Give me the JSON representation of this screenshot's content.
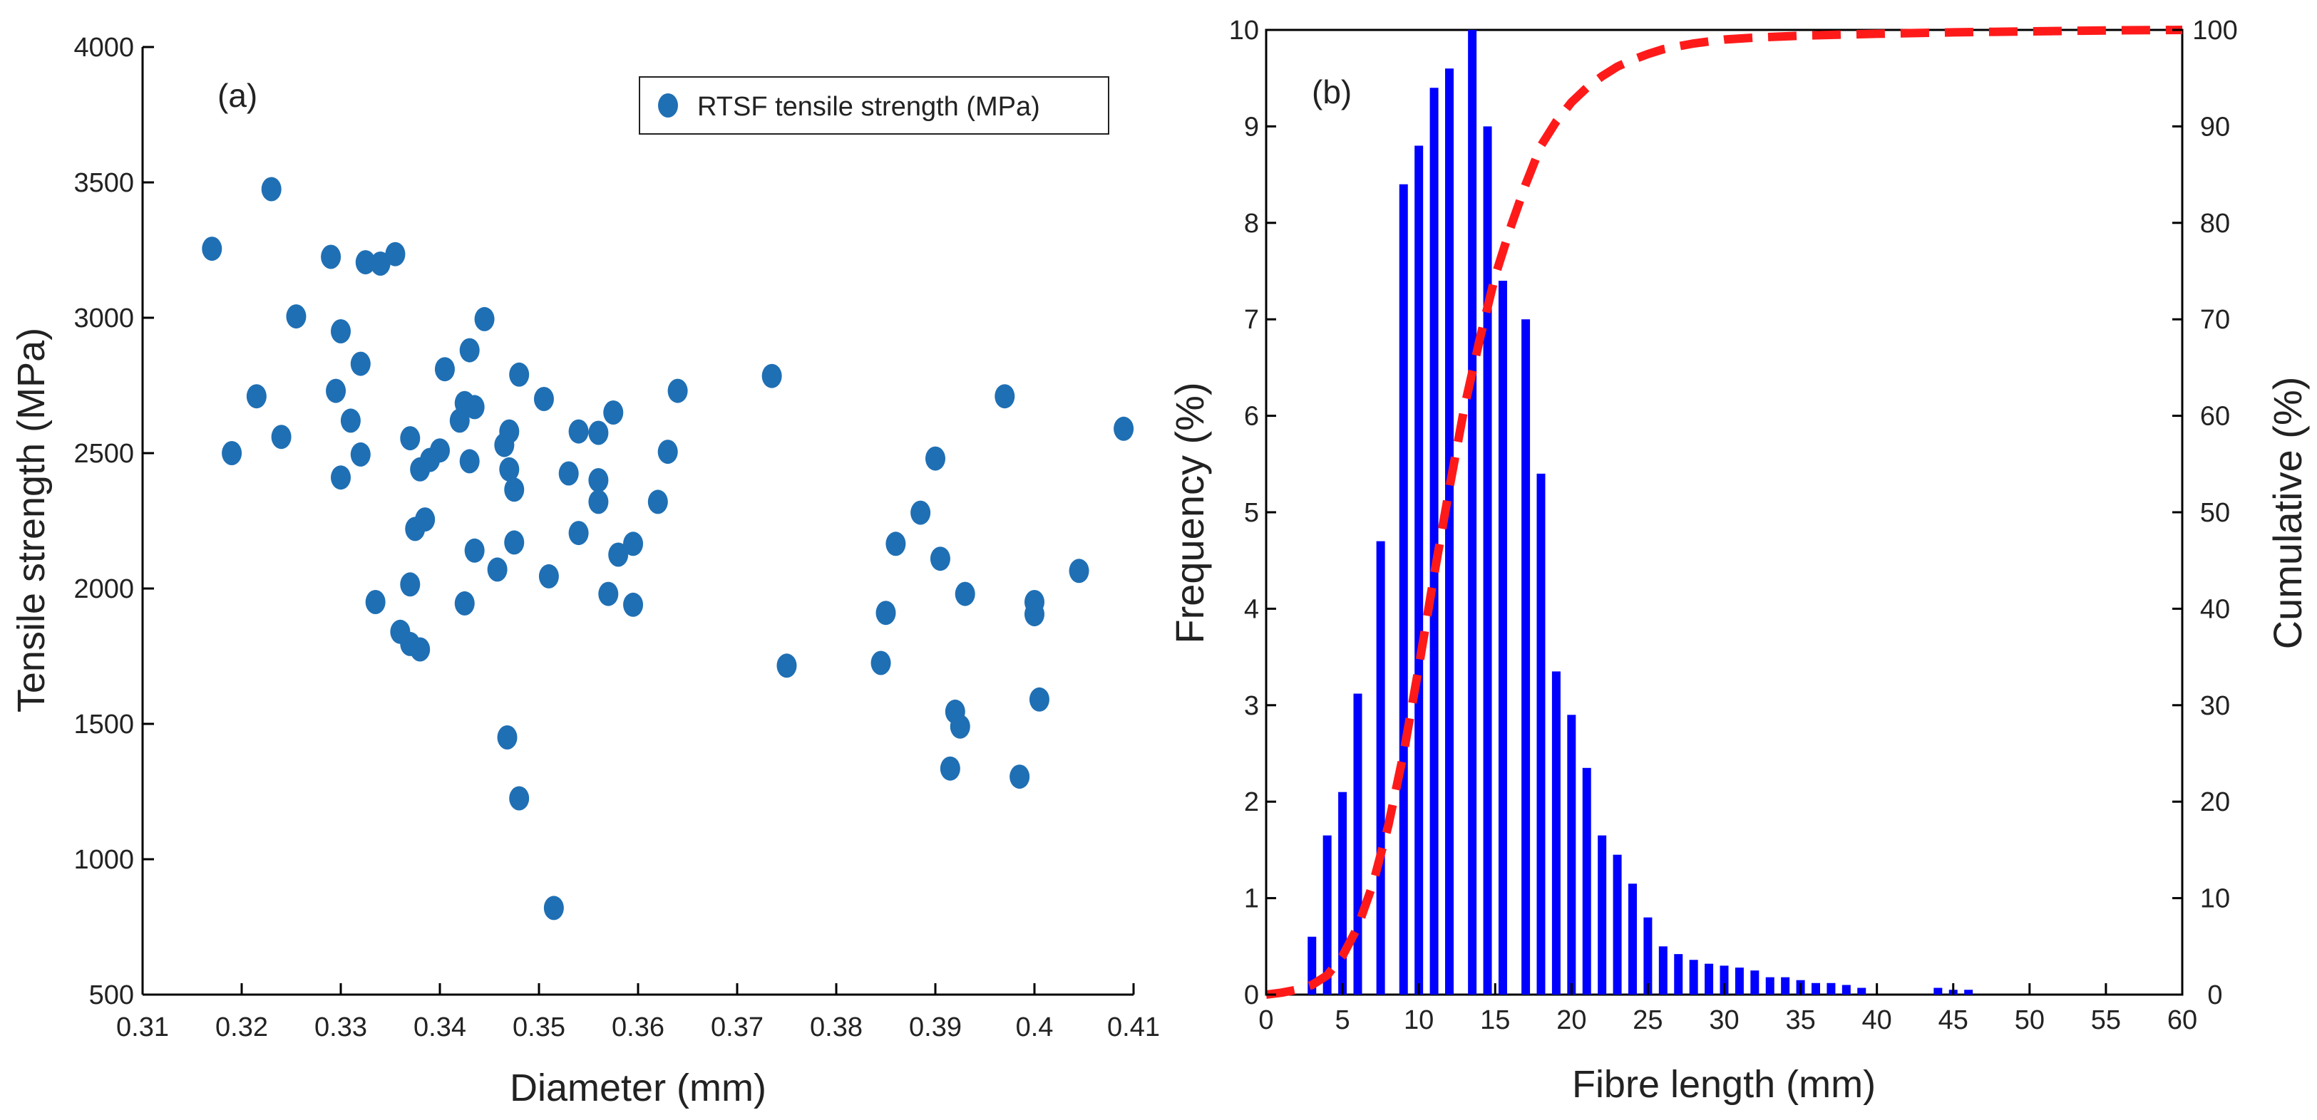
{
  "chart_data": [
    {
      "id": "a",
      "type": "scatter",
      "panel_label": "(a)",
      "xlabel": "Diameter (mm)",
      "ylabel": "Tensile strength (MPa)",
      "xlim": [
        0.31,
        0.41
      ],
      "ylim": [
        500,
        4000
      ],
      "xticks": [
        0.31,
        0.32,
        0.33,
        0.34,
        0.35,
        0.36,
        0.37,
        0.38,
        0.39,
        0.4,
        0.41
      ],
      "xtick_labels": [
        "0.31",
        "0.32",
        "0.33",
        "0.34",
        "0.35",
        "0.36",
        "0.37",
        "0.38",
        "0.39",
        "0.4",
        "0.41"
      ],
      "yticks": [
        500,
        1000,
        1500,
        2000,
        2500,
        3000,
        3500,
        4000
      ],
      "ytick_labels": [
        "500",
        "1000",
        "1500",
        "2000",
        "2500",
        "3000",
        "3500",
        "4000"
      ],
      "legend": {
        "label": "RTSF tensile strength (MPa)",
        "position": "top-right"
      },
      "series": [
        {
          "name": "RTSF tensile strength (MPa)",
          "color": "#1f6fb4",
          "points": [
            [
              0.317,
              3255
            ],
            [
              0.319,
              2500
            ],
            [
              0.3215,
              2710
            ],
            [
              0.323,
              3475
            ],
            [
              0.324,
              2560
            ],
            [
              0.3255,
              3005
            ],
            [
              0.329,
              3225
            ],
            [
              0.3295,
              2730
            ],
            [
              0.33,
              2950
            ],
            [
              0.33,
              2410
            ],
            [
              0.331,
              2620
            ],
            [
              0.332,
              2830
            ],
            [
              0.332,
              2495
            ],
            [
              0.3325,
              3205
            ],
            [
              0.3335,
              1950
            ],
            [
              0.334,
              3200
            ],
            [
              0.3355,
              3235
            ],
            [
              0.336,
              1840
            ],
            [
              0.337,
              2555
            ],
            [
              0.337,
              2015
            ],
            [
              0.337,
              1795
            ],
            [
              0.3375,
              2220
            ],
            [
              0.338,
              2440
            ],
            [
              0.338,
              1775
            ],
            [
              0.3385,
              2255
            ],
            [
              0.339,
              2475
            ],
            [
              0.34,
              2510
            ],
            [
              0.3405,
              2810
            ],
            [
              0.342,
              2620
            ],
            [
              0.3425,
              2685
            ],
            [
              0.3425,
              1945
            ],
            [
              0.343,
              2880
            ],
            [
              0.343,
              2470
            ],
            [
              0.3435,
              2670
            ],
            [
              0.3435,
              2140
            ],
            [
              0.3445,
              2995
            ],
            [
              0.3458,
              2070
            ],
            [
              0.3465,
              2530
            ],
            [
              0.3468,
              1450
            ],
            [
              0.347,
              2580
            ],
            [
              0.347,
              2440
            ],
            [
              0.3475,
              2365
            ],
            [
              0.3475,
              2170
            ],
            [
              0.348,
              2790
            ],
            [
              0.348,
              1225
            ],
            [
              0.3505,
              2700
            ],
            [
              0.351,
              2045
            ],
            [
              0.3515,
              820
            ],
            [
              0.353,
              2425
            ],
            [
              0.354,
              2580
            ],
            [
              0.354,
              2205
            ],
            [
              0.356,
              2575
            ],
            [
              0.356,
              2400
            ],
            [
              0.356,
              2320
            ],
            [
              0.357,
              1980
            ],
            [
              0.3575,
              2650
            ],
            [
              0.358,
              2125
            ],
            [
              0.3595,
              2165
            ],
            [
              0.3595,
              1940
            ],
            [
              0.362,
              2320
            ],
            [
              0.363,
              2505
            ],
            [
              0.364,
              2730
            ],
            [
              0.3735,
              2785
            ],
            [
              0.375,
              1715
            ],
            [
              0.3845,
              1725
            ],
            [
              0.385,
              1910
            ],
            [
              0.386,
              2165
            ],
            [
              0.3885,
              2280
            ],
            [
              0.39,
              2480
            ],
            [
              0.3905,
              2110
            ],
            [
              0.3915,
              1335
            ],
            [
              0.392,
              1545
            ],
            [
              0.3925,
              1490
            ],
            [
              0.393,
              1980
            ],
            [
              0.397,
              2710
            ],
            [
              0.3985,
              1305
            ],
            [
              0.4,
              1950
            ],
            [
              0.4,
              1905
            ],
            [
              0.4005,
              1590
            ],
            [
              0.4045,
              2065
            ],
            [
              0.409,
              2590
            ]
          ]
        }
      ]
    },
    {
      "id": "b",
      "type": "bar",
      "panel_label": "(b)",
      "xlabel": "Fibre length (mm)",
      "ylabel": "Frequency (%)",
      "y2label": "Cumulative (%)",
      "xlim": [
        0,
        60
      ],
      "ylim": [
        0,
        10
      ],
      "y2lim": [
        0,
        100
      ],
      "xticks": [
        0,
        5,
        10,
        15,
        20,
        25,
        30,
        35,
        40,
        45,
        50,
        55,
        60
      ],
      "xtick_labels": [
        "0",
        "5",
        "10",
        "15",
        "20",
        "25",
        "30",
        "35",
        "40",
        "45",
        "50",
        "55",
        "60"
      ],
      "yticks": [
        0,
        1,
        2,
        3,
        4,
        5,
        6,
        7,
        8,
        9,
        10
      ],
      "ytick_labels": [
        "0",
        "1",
        "2",
        "3",
        "4",
        "5",
        "6",
        "7",
        "8",
        "9",
        "10"
      ],
      "y2ticks": [
        0,
        10,
        20,
        30,
        40,
        50,
        60,
        70,
        80,
        90,
        100
      ],
      "y2tick_labels": [
        "0",
        "10",
        "20",
        "30",
        "40",
        "50",
        "60",
        "70",
        "80",
        "90",
        "100"
      ],
      "series": [
        {
          "name": "Frequency",
          "kind": "bar",
          "axis": "left",
          "color": "#0000ff",
          "x": [
            3,
            4,
            5,
            6,
            7.5,
            9,
            10,
            11,
            12,
            13.5,
            14.5,
            15.5,
            17,
            18,
            19,
            20,
            21,
            22,
            23,
            24,
            25,
            26,
            27,
            28,
            29,
            30,
            31,
            32,
            33,
            34,
            35,
            36,
            37,
            38,
            39,
            44,
            45,
            46
          ],
          "values": [
            0.6,
            1.65,
            2.1,
            3.12,
            4.7,
            8.4,
            8.8,
            9.4,
            9.6,
            10.0,
            9.0,
            7.4,
            7.0,
            5.4,
            3.35,
            2.9,
            2.35,
            1.65,
            1.45,
            1.15,
            0.8,
            0.5,
            0.42,
            0.36,
            0.32,
            0.3,
            0.28,
            0.25,
            0.18,
            0.18,
            0.15,
            0.12,
            0.12,
            0.1,
            0.07,
            0.07,
            0.05,
            0.05
          ]
        },
        {
          "name": "Cumulative",
          "kind": "line",
          "axis": "right",
          "color": "#ff1a1a",
          "style": "dashed",
          "x": [
            0,
            1,
            2,
            3,
            4,
            5,
            6,
            7,
            8,
            9,
            10,
            11,
            12,
            13,
            14,
            15,
            16,
            17,
            18,
            19,
            20,
            21,
            22,
            23,
            24,
            25,
            26,
            27,
            28,
            29,
            30,
            32,
            35,
            40,
            45,
            50,
            55,
            60
          ],
          "values": [
            0,
            0.2,
            0.5,
            1.0,
            2.0,
            4.0,
            7.0,
            11.5,
            17.5,
            25.0,
            34.0,
            43.5,
            52.5,
            61.0,
            68.0,
            74.5,
            79.5,
            84.0,
            88.0,
            90.5,
            92.5,
            94.0,
            95.2,
            96.2,
            96.9,
            97.5,
            98.0,
            98.3,
            98.6,
            98.8,
            99.0,
            99.2,
            99.4,
            99.6,
            99.75,
            99.85,
            99.95,
            100
          ]
        }
      ]
    }
  ]
}
